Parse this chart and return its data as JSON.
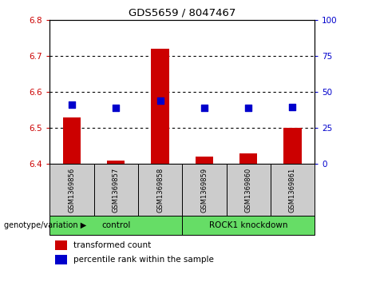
{
  "title": "GDS5659 / 8047467",
  "samples": [
    "GSM1369856",
    "GSM1369857",
    "GSM1369858",
    "GSM1369859",
    "GSM1369860",
    "GSM1369861"
  ],
  "red_values": [
    6.53,
    6.41,
    6.72,
    6.42,
    6.43,
    6.5
  ],
  "blue_values": [
    6.565,
    6.555,
    6.575,
    6.555,
    6.555,
    6.558
  ],
  "ylim": [
    6.4,
    6.8
  ],
  "yticks_left": [
    6.4,
    6.5,
    6.6,
    6.7,
    6.8
  ],
  "yticks_right": [
    0,
    25,
    50,
    75,
    100
  ],
  "grid_lines": [
    6.5,
    6.6,
    6.7
  ],
  "groups_info": [
    {
      "label": "control",
      "start": 0,
      "end": 2
    },
    {
      "label": "ROCK1 knockdown",
      "start": 3,
      "end": 5
    }
  ],
  "group_row_color": "#66dd66",
  "sample_box_color": "#cccccc",
  "bar_color": "#cc0000",
  "dot_color": "#0000cc",
  "bar_width": 0.4,
  "dot_size": 35,
  "legend_red_label": "transformed count",
  "legend_blue_label": "percentile rank within the sample",
  "left_label_color": "#cc0000",
  "right_label_color": "#0000cc",
  "genotype_label": "genotype/variation"
}
